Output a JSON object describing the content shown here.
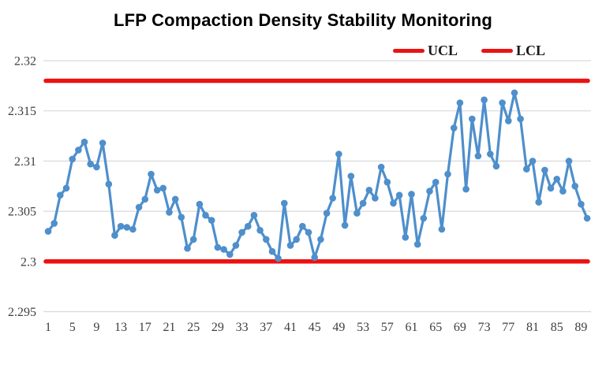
{
  "chart_data": {
    "type": "line",
    "title": "LFP Compaction Density Stability Monitoring",
    "series_color": "#4E8FCC",
    "limit_color": "#EC1212",
    "x_start": 1,
    "x_step": 1,
    "series": [
      {
        "values": [
          2.303,
          2.3038,
          2.3066,
          2.3073,
          2.3102,
          2.3111,
          2.3119,
          2.3097,
          2.3094,
          2.3118,
          2.3077,
          2.3026,
          2.3035,
          2.3034,
          2.3032,
          2.3054,
          2.3062,
          2.3087,
          2.3071,
          2.3073,
          2.3049,
          2.3062,
          2.3044,
          2.3013,
          2.3022,
          2.3057,
          2.3046,
          2.3041,
          2.3014,
          2.3012,
          2.3007,
          2.3016,
          2.3029,
          2.3035,
          2.3046,
          2.3031,
          2.3022,
          2.301,
          2.3003,
          2.3058,
          2.3016,
          2.3022,
          2.3035,
          2.3029,
          2.3004,
          2.3022,
          2.3048,
          2.3063,
          2.3107,
          2.3036,
          2.3085,
          2.3048,
          2.3058,
          2.3071,
          2.3063,
          2.3094,
          2.3079,
          2.3058,
          2.3066,
          2.3024,
          2.3067,
          2.3017,
          2.3043,
          2.307,
          2.3079,
          2.3032,
          2.3087,
          2.3133,
          2.3158,
          2.3072,
          2.3142,
          2.3105,
          2.3161,
          2.3107,
          2.3095,
          2.3158,
          2.314,
          2.3168,
          2.3142,
          2.3092,
          2.31,
          2.3059,
          2.3091,
          2.3073,
          2.3082,
          2.307,
          2.31,
          2.3075,
          2.3057,
          2.3043
        ]
      }
    ],
    "control_limits": {
      "ucl": {
        "label": "UCL",
        "value": 2.318
      },
      "lcl": {
        "label": "LCL",
        "value": 2.3
      }
    },
    "legend": [
      {
        "label": "UCL"
      },
      {
        "label": "LCL"
      }
    ],
    "legend_position": "top-right",
    "grid": true,
    "y_axis": {
      "ticks": [
        2.32,
        2.315,
        2.31,
        2.305,
        2.3,
        2.295
      ],
      "tick_labels": [
        "2.32",
        "2.315",
        "2.31",
        "2.305",
        "2.3",
        "2.295"
      ],
      "ylim": [
        2.295,
        2.32
      ]
    },
    "x_axis": {
      "tick_labels": [
        "1",
        "5",
        "9",
        "13",
        "17",
        "21",
        "25",
        "29",
        "33",
        "37",
        "41",
        "45",
        "49",
        "53",
        "57",
        "61",
        "65",
        "69",
        "73",
        "77",
        "81",
        "85",
        "89"
      ],
      "tick_step": 4
    }
  }
}
